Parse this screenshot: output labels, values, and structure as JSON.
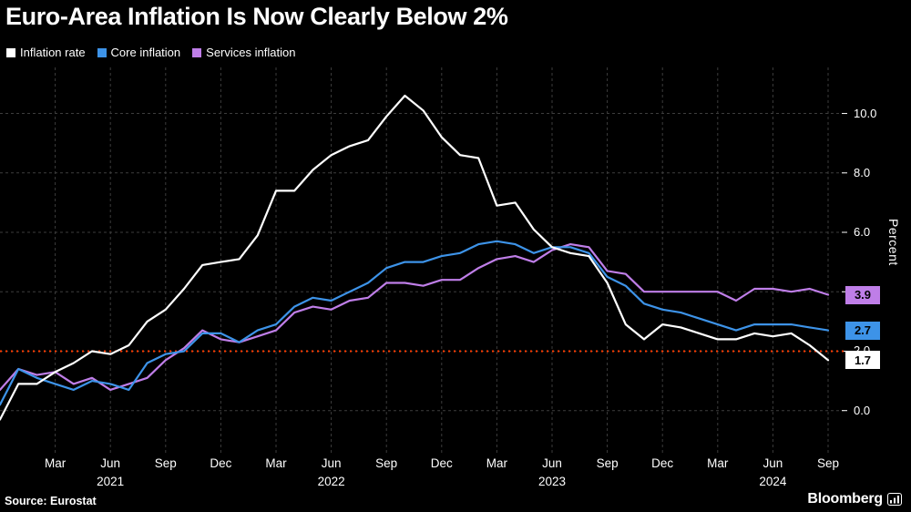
{
  "title": "Euro-Area Inflation Is Now Clearly Below 2%",
  "legend": [
    {
      "label": "Inflation rate",
      "color": "#ffffff"
    },
    {
      "label": "Core inflation",
      "color": "#3d93e8"
    },
    {
      "label": "Services inflation",
      "color": "#bf7ee8"
    }
  ],
  "source": "Source: Eurostat",
  "branding": "Bloomberg",
  "colors": {
    "background": "#000000",
    "grid": "#3d3d3d",
    "axis_text": "#ffffff",
    "reference_line": "#ff3d00"
  },
  "chart_data": {
    "type": "line",
    "title": "Euro-Area Inflation Is Now Clearly Below 2%",
    "xlabel": "",
    "ylabel": "Percent",
    "ylim": [
      -1.45,
      11.55
    ],
    "yticks": [
      0.0,
      2.0,
      4.0,
      6.0,
      8.0,
      10.0
    ],
    "grid": true,
    "legend_position": "top-left",
    "x_start": "2020-12",
    "x_end": "2024-09",
    "reference_line": {
      "value": 2.0,
      "color": "#ff3d00",
      "style": "dotted"
    },
    "xticks": [
      {
        "label": "Mar",
        "index": 3
      },
      {
        "label": "Jun",
        "index": 6
      },
      {
        "label": "Sep",
        "index": 9
      },
      {
        "label": "Dec",
        "index": 12
      },
      {
        "label": "Mar",
        "index": 15
      },
      {
        "label": "Jun",
        "index": 18
      },
      {
        "label": "Sep",
        "index": 21
      },
      {
        "label": "Dec",
        "index": 24
      },
      {
        "label": "Mar",
        "index": 27
      },
      {
        "label": "Jun",
        "index": 30
      },
      {
        "label": "Sep",
        "index": 33
      },
      {
        "label": "Dec",
        "index": 36
      },
      {
        "label": "Mar",
        "index": 39
      },
      {
        "label": "Jun",
        "index": 42
      },
      {
        "label": "Sep",
        "index": 45
      }
    ],
    "year_labels": [
      {
        "label": "2021",
        "index": 6
      },
      {
        "label": "2022",
        "index": 18
      },
      {
        "label": "2023",
        "index": 30
      },
      {
        "label": "2024",
        "index": 42
      }
    ],
    "series": [
      {
        "name": "Inflation rate",
        "color": "#ffffff",
        "end_label": "1.7",
        "values": [
          -0.3,
          0.9,
          0.9,
          1.3,
          1.6,
          2.0,
          1.9,
          2.2,
          3.0,
          3.4,
          4.1,
          4.9,
          5.0,
          5.1,
          5.9,
          7.4,
          7.4,
          8.1,
          8.6,
          8.9,
          9.1,
          9.9,
          10.6,
          10.1,
          9.2,
          8.6,
          8.5,
          6.9,
          7.0,
          6.1,
          5.5,
          5.3,
          5.2,
          4.3,
          2.9,
          2.4,
          2.9,
          2.8,
          2.6,
          2.4,
          2.4,
          2.6,
          2.5,
          2.6,
          2.2,
          1.7
        ]
      },
      {
        "name": "Core inflation",
        "color": "#3d93e8",
        "end_label": "2.7",
        "values": [
          0.2,
          1.4,
          1.1,
          0.9,
          0.7,
          1.0,
          0.9,
          0.7,
          1.6,
          1.9,
          2.0,
          2.6,
          2.6,
          2.3,
          2.7,
          2.9,
          3.5,
          3.8,
          3.7,
          4.0,
          4.3,
          4.8,
          5.0,
          5.0,
          5.2,
          5.3,
          5.6,
          5.7,
          5.6,
          5.3,
          5.5,
          5.5,
          5.3,
          4.5,
          4.2,
          3.6,
          3.4,
          3.3,
          3.1,
          2.9,
          2.7,
          2.9,
          2.9,
          2.9,
          2.8,
          2.7
        ]
      },
      {
        "name": "Services inflation",
        "color": "#bf7ee8",
        "end_label": "3.9",
        "values": [
          0.7,
          1.4,
          1.2,
          1.3,
          0.9,
          1.1,
          0.7,
          0.9,
          1.1,
          1.7,
          2.1,
          2.7,
          2.4,
          2.3,
          2.5,
          2.7,
          3.3,
          3.5,
          3.4,
          3.7,
          3.8,
          4.3,
          4.3,
          4.2,
          4.4,
          4.4,
          4.8,
          5.1,
          5.2,
          5.0,
          5.4,
          5.6,
          5.5,
          4.7,
          4.6,
          4.0,
          4.0,
          4.0,
          4.0,
          4.0,
          3.7,
          4.1,
          4.1,
          4.0,
          4.1,
          3.9
        ]
      }
    ]
  }
}
